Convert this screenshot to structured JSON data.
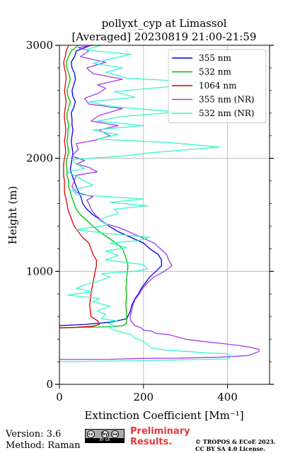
{
  "chart_data": {
    "type": "line",
    "title": "pollyxt_cyp at Limassol",
    "subtitle": "[Averaged] 20230819 21:00-21:59",
    "xlabel": "Extinction Coefficient [Mm⁻¹]",
    "ylabel": "Height (m)",
    "xlim": [
      0,
      500
    ],
    "ylim": [
      0,
      3000
    ],
    "xticks": [
      0,
      200,
      400
    ],
    "yticks": [
      0,
      1000,
      2000,
      3000
    ],
    "grid": true,
    "legend_position": "top-right",
    "series": [
      {
        "name": "355 nm",
        "color": "#0000dd",
        "points": [
          [
            0,
            520
          ],
          [
            60,
            530
          ],
          [
            120,
            550
          ],
          [
            160,
            580
          ],
          [
            168,
            640
          ],
          [
            172,
            700
          ],
          [
            180,
            760
          ],
          [
            188,
            800
          ],
          [
            195,
            850
          ],
          [
            205,
            900
          ],
          [
            215,
            950
          ],
          [
            230,
            1000
          ],
          [
            243,
            1050
          ],
          [
            243,
            1100
          ],
          [
            235,
            1150
          ],
          [
            215,
            1200
          ],
          [
            200,
            1250
          ],
          [
            170,
            1300
          ],
          [
            140,
            1350
          ],
          [
            118,
            1400
          ],
          [
            100,
            1450
          ],
          [
            80,
            1500
          ],
          [
            65,
            1550
          ],
          [
            55,
            1600
          ],
          [
            52,
            1650
          ],
          [
            46,
            1700
          ],
          [
            40,
            1750
          ],
          [
            35,
            1800
          ],
          [
            30,
            1850
          ],
          [
            26,
            1900
          ],
          [
            28,
            1950
          ],
          [
            30,
            2000
          ],
          [
            32,
            2050
          ],
          [
            30,
            2100
          ],
          [
            28,
            2150
          ],
          [
            30,
            2200
          ],
          [
            32,
            2250
          ],
          [
            30,
            2300
          ],
          [
            30,
            2350
          ],
          [
            28,
            2400
          ],
          [
            34,
            2450
          ],
          [
            38,
            2500
          ],
          [
            32,
            2550
          ],
          [
            30,
            2600
          ],
          [
            34,
            2650
          ],
          [
            38,
            2700
          ],
          [
            36,
            2750
          ],
          [
            30,
            2800
          ],
          [
            28,
            2850
          ],
          [
            36,
            2900
          ],
          [
            40,
            2950
          ],
          [
            75,
            3000
          ]
        ]
      },
      {
        "name": "532 nm",
        "color": "#00bb00",
        "points": [
          [
            0,
            500
          ],
          [
            60,
            505
          ],
          [
            120,
            510
          ],
          [
            150,
            520
          ],
          [
            160,
            540
          ],
          [
            160,
            600
          ],
          [
            158,
            700
          ],
          [
            160,
            800
          ],
          [
            158,
            850
          ],
          [
            160,
            900
          ],
          [
            160,
            950
          ],
          [
            162,
            1000
          ],
          [
            163,
            1050
          ],
          [
            160,
            1100
          ],
          [
            155,
            1150
          ],
          [
            150,
            1200
          ],
          [
            135,
            1250
          ],
          [
            115,
            1300
          ],
          [
            95,
            1350
          ],
          [
            80,
            1400
          ],
          [
            65,
            1450
          ],
          [
            50,
            1500
          ],
          [
            40,
            1550
          ],
          [
            35,
            1600
          ],
          [
            30,
            1650
          ],
          [
            26,
            1700
          ],
          [
            22,
            1750
          ],
          [
            22,
            1800
          ],
          [
            18,
            1850
          ],
          [
            18,
            1900
          ],
          [
            16,
            1950
          ],
          [
            18,
            2000
          ],
          [
            22,
            2050
          ],
          [
            20,
            2100
          ],
          [
            18,
            2150
          ],
          [
            20,
            2200
          ],
          [
            20,
            2250
          ],
          [
            22,
            2300
          ],
          [
            18,
            2350
          ],
          [
            18,
            2400
          ],
          [
            22,
            2450
          ],
          [
            26,
            2500
          ],
          [
            20,
            2550
          ],
          [
            18,
            2600
          ],
          [
            22,
            2650
          ],
          [
            26,
            2700
          ],
          [
            22,
            2750
          ],
          [
            18,
            2800
          ],
          [
            16,
            2850
          ],
          [
            22,
            2900
          ],
          [
            28,
            2950
          ],
          [
            45,
            3000
          ]
        ]
      },
      {
        "name": "1064 nm",
        "color": "#dd0000",
        "points": [
          [
            0,
            500
          ],
          [
            40,
            505
          ],
          [
            80,
            515
          ],
          [
            95,
            530
          ],
          [
            92,
            560
          ],
          [
            75,
            600
          ],
          [
            72,
            700
          ],
          [
            75,
            800
          ],
          [
            80,
            900
          ],
          [
            85,
            1000
          ],
          [
            88,
            1050
          ],
          [
            88,
            1100
          ],
          [
            80,
            1150
          ],
          [
            75,
            1200
          ],
          [
            70,
            1250
          ],
          [
            55,
            1300
          ],
          [
            45,
            1350
          ],
          [
            35,
            1400
          ],
          [
            30,
            1450
          ],
          [
            25,
            1500
          ],
          [
            20,
            1550
          ],
          [
            18,
            1600
          ],
          [
            15,
            1650
          ],
          [
            12,
            1700
          ],
          [
            12,
            1750
          ],
          [
            12,
            1800
          ],
          [
            10,
            1850
          ],
          [
            10,
            1900
          ],
          [
            10,
            1950
          ],
          [
            12,
            2000
          ],
          [
            15,
            2050
          ],
          [
            14,
            2100
          ],
          [
            12,
            2150
          ],
          [
            14,
            2200
          ],
          [
            15,
            2250
          ],
          [
            14,
            2300
          ],
          [
            12,
            2350
          ],
          [
            12,
            2400
          ],
          [
            14,
            2450
          ],
          [
            16,
            2500
          ],
          [
            14,
            2550
          ],
          [
            12,
            2600
          ],
          [
            14,
            2650
          ],
          [
            16,
            2700
          ],
          [
            15,
            2750
          ],
          [
            12,
            2800
          ],
          [
            10,
            2850
          ],
          [
            14,
            2900
          ],
          [
            16,
            2950
          ],
          [
            22,
            3000
          ]
        ]
      },
      {
        "name": "355 nm (NR)",
        "color": "#a23cf0",
        "points": [
          [
            0,
            220
          ],
          [
            120,
            222
          ],
          [
            200,
            230
          ],
          [
            280,
            232
          ],
          [
            380,
            240
          ],
          [
            450,
            255
          ],
          [
            475,
            290
          ],
          [
            475,
            310
          ],
          [
            450,
            330
          ],
          [
            425,
            345
          ],
          [
            390,
            360
          ],
          [
            340,
            380
          ],
          [
            300,
            400
          ],
          [
            280,
            420
          ],
          [
            260,
            440
          ],
          [
            230,
            450
          ],
          [
            220,
            470
          ],
          [
            200,
            480
          ],
          [
            195,
            500
          ],
          [
            180,
            520
          ],
          [
            175,
            540
          ],
          [
            170,
            560
          ],
          [
            168,
            600
          ],
          [
            172,
            650
          ],
          [
            175,
            700
          ],
          [
            180,
            750
          ],
          [
            190,
            800
          ],
          [
            198,
            850
          ],
          [
            210,
            900
          ],
          [
            225,
            950
          ],
          [
            250,
            1000
          ],
          [
            268,
            1050
          ],
          [
            260,
            1100
          ],
          [
            255,
            1150
          ],
          [
            240,
            1200
          ],
          [
            225,
            1250
          ],
          [
            195,
            1300
          ],
          [
            165,
            1350
          ],
          [
            140,
            1390
          ],
          [
            110,
            1420
          ],
          [
            100,
            1450
          ],
          [
            85,
            1500
          ],
          [
            75,
            1550
          ],
          [
            70,
            1600
          ],
          [
            65,
            1630
          ],
          [
            80,
            1660
          ],
          [
            40,
            1700
          ],
          [
            30,
            1750
          ],
          [
            35,
            1800
          ],
          [
            40,
            1850
          ],
          [
            90,
            1880
          ],
          [
            70,
            1920
          ],
          [
            40,
            1950
          ],
          [
            60,
            1980
          ],
          [
            30,
            2020
          ],
          [
            45,
            2080
          ],
          [
            40,
            2130
          ],
          [
            85,
            2160
          ],
          [
            120,
            2200
          ],
          [
            95,
            2250
          ],
          [
            140,
            2290
          ],
          [
            75,
            2330
          ],
          [
            95,
            2380
          ],
          [
            150,
            2440
          ],
          [
            70,
            2480
          ],
          [
            60,
            2530
          ],
          [
            95,
            2580
          ],
          [
            110,
            2620
          ],
          [
            90,
            2650
          ],
          [
            150,
            2700
          ],
          [
            80,
            2750
          ],
          [
            65,
            2800
          ],
          [
            110,
            2850
          ],
          [
            50,
            2900
          ],
          [
            70,
            2950
          ],
          [
            45,
            2980
          ],
          [
            80,
            3000
          ]
        ]
      },
      {
        "name": "532 nm (NR)",
        "color": "#3cf5cc",
        "points": [
          [
            0,
            200
          ],
          [
            200,
            210
          ],
          [
            400,
            225
          ],
          [
            410,
            250
          ],
          [
            400,
            270
          ],
          [
            340,
            280
          ],
          [
            310,
            290
          ],
          [
            260,
            300
          ],
          [
            220,
            320
          ],
          [
            210,
            350
          ],
          [
            200,
            380
          ],
          [
            180,
            410
          ],
          [
            170,
            440
          ],
          [
            150,
            460
          ],
          [
            130,
            480
          ],
          [
            120,
            500
          ],
          [
            130,
            520
          ],
          [
            115,
            540
          ],
          [
            140,
            560
          ],
          [
            100,
            580
          ],
          [
            110,
            620
          ],
          [
            90,
            650
          ],
          [
            120,
            690
          ],
          [
            80,
            730
          ],
          [
            95,
            760
          ],
          [
            20,
            790
          ],
          [
            80,
            820
          ],
          [
            40,
            850
          ],
          [
            60,
            880
          ],
          [
            90,
            910
          ],
          [
            120,
            950
          ],
          [
            100,
            980
          ],
          [
            180,
            1000
          ],
          [
            210,
            1020
          ],
          [
            200,
            1060
          ],
          [
            110,
            1100
          ],
          [
            140,
            1140
          ],
          [
            110,
            1180
          ],
          [
            160,
            1210
          ],
          [
            120,
            1250
          ],
          [
            185,
            1270
          ],
          [
            215,
            1300
          ],
          [
            100,
            1340
          ],
          [
            40,
            1370
          ],
          [
            115,
            1410
          ],
          [
            95,
            1450
          ],
          [
            110,
            1480
          ],
          [
            140,
            1510
          ],
          [
            130,
            1550
          ],
          [
            210,
            1580
          ],
          [
            120,
            1610
          ],
          [
            200,
            1640
          ],
          [
            40,
            1680
          ],
          [
            30,
            1720
          ],
          [
            80,
            1760
          ],
          [
            60,
            1800
          ],
          [
            40,
            1840
          ],
          [
            20,
            1880
          ],
          [
            60,
            1910
          ],
          [
            40,
            1950
          ],
          [
            30,
            1990
          ],
          [
            150,
            2020
          ],
          [
            220,
            2050
          ],
          [
            380,
            2100
          ],
          [
            260,
            2140
          ],
          [
            90,
            2170
          ],
          [
            140,
            2210
          ],
          [
            80,
            2250
          ],
          [
            200,
            2290
          ],
          [
            90,
            2330
          ],
          [
            150,
            2370
          ],
          [
            280,
            2410
          ],
          [
            120,
            2460
          ],
          [
            70,
            2500
          ],
          [
            180,
            2540
          ],
          [
            130,
            2590
          ],
          [
            250,
            2630
          ],
          [
            350,
            2670
          ],
          [
            160,
            2710
          ],
          [
            110,
            2760
          ],
          [
            150,
            2800
          ],
          [
            80,
            2840
          ],
          [
            120,
            2880
          ],
          [
            170,
            2920
          ],
          [
            60,
            2960
          ],
          [
            100,
            3000
          ]
        ]
      }
    ]
  },
  "footer": {
    "version": "Version: 3.6",
    "method": "Method: Raman",
    "license_badge": "BY  SA",
    "license_icons": [
      "cc",
      "by",
      "sa"
    ],
    "preliminary_line1": "Preliminary",
    "preliminary_line2": "Results.",
    "copyright_line1": "© TROPOS & ECoE 2023.",
    "copyright_line2": "CC BY SA 4.0 License."
  }
}
